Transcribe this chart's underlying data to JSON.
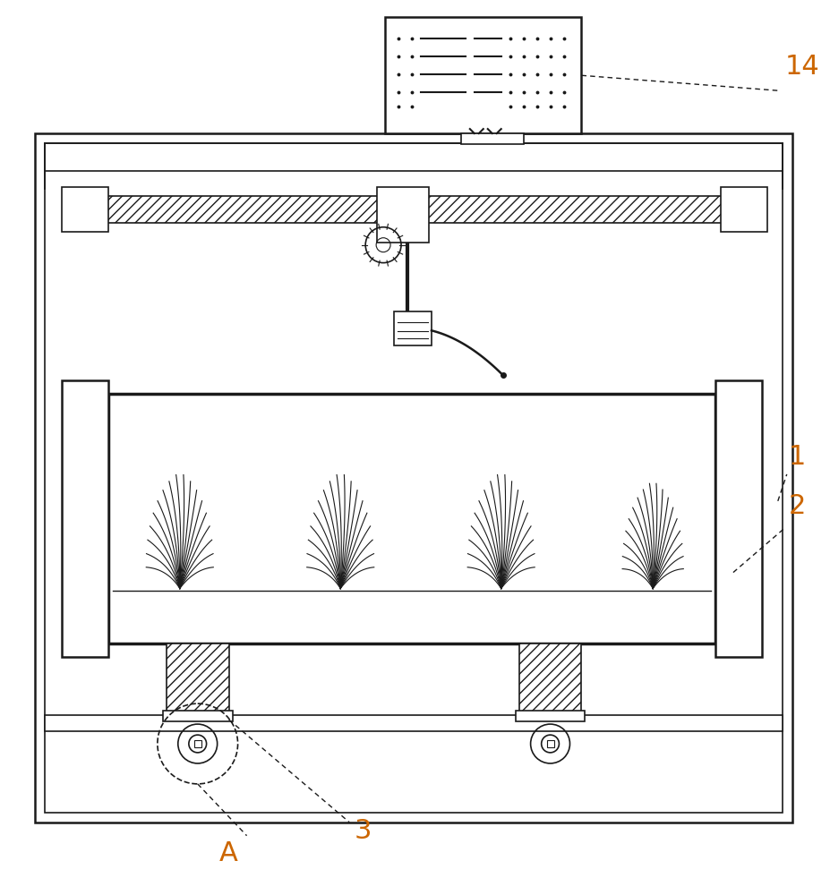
{
  "bg_color": "#ffffff",
  "line_color": "#1a1a1a",
  "number_color": "#cc6600",
  "fig_width": 9.27,
  "fig_height": 10.0
}
